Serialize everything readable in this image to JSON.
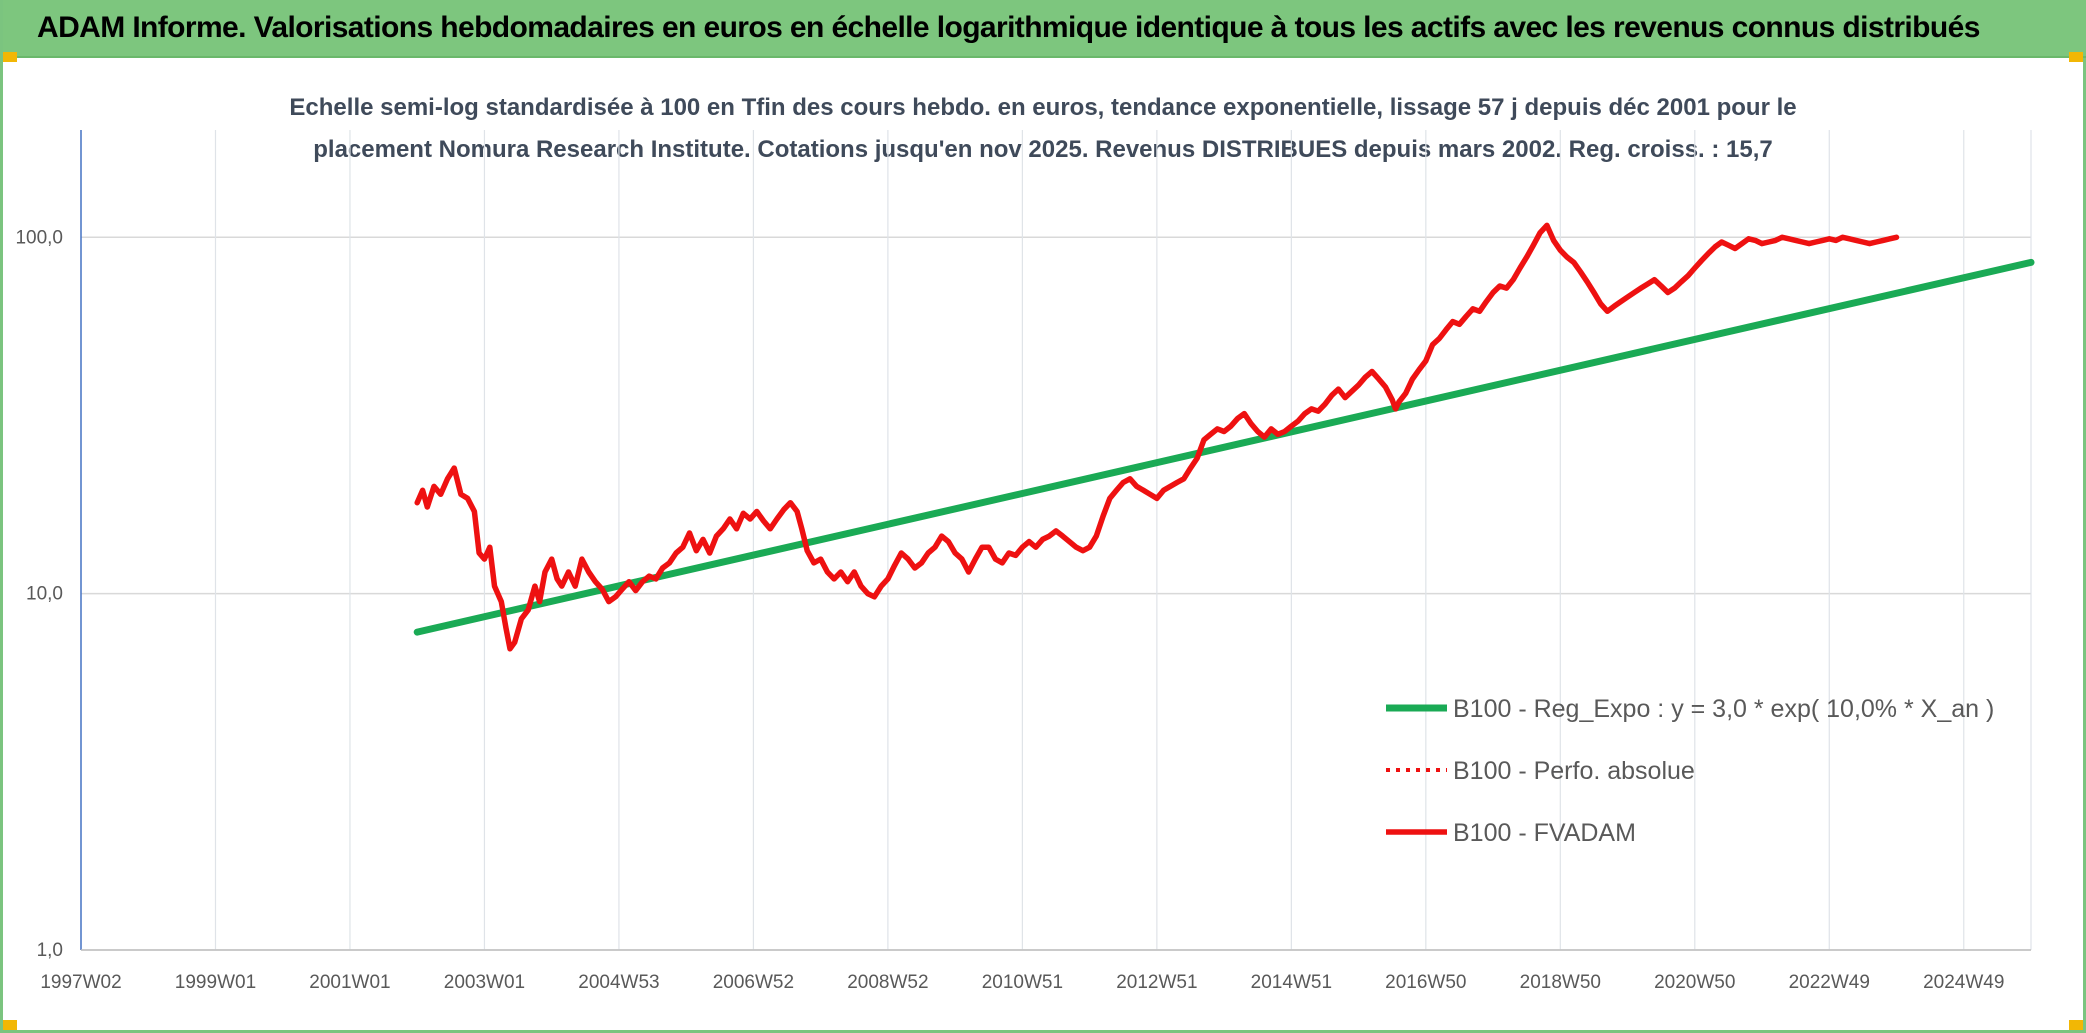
{
  "header": {
    "title": "ADAM Informe. Valorisations hebdomadaires en euros en échelle logarithmique identique à tous les actifs avec les revenus connus distribués",
    "background": "#7dc67e"
  },
  "chart_data": {
    "type": "line",
    "title_lines": [
      "Echelle semi-log standardisée à 100 en Tfin des cours hebdo. en euros, tendance exponentielle, lissage 57 j depuis déc 2001 pour le",
      "placement Nomura Research Institute. Cotations jusqu'en nov 2025. Revenus DISTRIBUES depuis mars 2002. Reg. croiss. : 15,7"
    ],
    "y_scale": "log",
    "ylim": [
      1,
      200
    ],
    "y_ticks": [
      {
        "value": 100,
        "label": "100,0"
      },
      {
        "value": 10,
        "label": "10,0"
      },
      {
        "value": 1,
        "label": "1,0"
      }
    ],
    "xlim": [
      1997.0,
      2026.0
    ],
    "x_ticks": [
      {
        "value": 1997.0,
        "label": "1997W02"
      },
      {
        "value": 1999.0,
        "label": "1999W01"
      },
      {
        "value": 2001.0,
        "label": "2001W01"
      },
      {
        "value": 2003.0,
        "label": "2003W01"
      },
      {
        "value": 2005.0,
        "label": "2004W53"
      },
      {
        "value": 2007.0,
        "label": "2006W52"
      },
      {
        "value": 2009.0,
        "label": "2008W52"
      },
      {
        "value": 2011.0,
        "label": "2010W51"
      },
      {
        "value": 2013.0,
        "label": "2012W51"
      },
      {
        "value": 2015.0,
        "label": "2014W51"
      },
      {
        "value": 2017.0,
        "label": "2016W50"
      },
      {
        "value": 2019.0,
        "label": "2018W50"
      },
      {
        "value": 2021.0,
        "label": "2020W50"
      },
      {
        "value": 2023.0,
        "label": "2022W49"
      },
      {
        "value": 2025.0,
        "label": "2024W49"
      }
    ],
    "grid": true,
    "legend_position": "right",
    "series": [
      {
        "name": "B100 - Reg_Expo : y = 3,0 * exp( 10,0% *  X_an )",
        "color": "#1aaa55",
        "style": "solid",
        "points": [
          [
            2002.0,
            7.8
          ],
          [
            2026.0,
            85
          ]
        ]
      },
      {
        "name": "B100 - Perfo. absolue",
        "color": "#ee1111",
        "style": "dotted",
        "points": []
      },
      {
        "name": "B100 - FVADAM",
        "color": "#ee1111",
        "style": "solid",
        "points": [
          [
            2002.0,
            18
          ],
          [
            2002.08,
            19.5
          ],
          [
            2002.15,
            17.5
          ],
          [
            2002.25,
            20
          ],
          [
            2002.35,
            19
          ],
          [
            2002.45,
            21
          ],
          [
            2002.55,
            22.5
          ],
          [
            2002.65,
            19
          ],
          [
            2002.75,
            18.5
          ],
          [
            2002.85,
            17
          ],
          [
            2002.92,
            13
          ],
          [
            2003.0,
            12.5
          ],
          [
            2003.08,
            13.5
          ],
          [
            2003.15,
            10.5
          ],
          [
            2003.25,
            9.5
          ],
          [
            2003.32,
            8.0
          ],
          [
            2003.38,
            7.0
          ],
          [
            2003.45,
            7.3
          ],
          [
            2003.55,
            8.5
          ],
          [
            2003.65,
            9.0
          ],
          [
            2003.75,
            10.5
          ],
          [
            2003.82,
            9.5
          ],
          [
            2003.9,
            11.5
          ],
          [
            2004.0,
            12.5
          ],
          [
            2004.08,
            11.0
          ],
          [
            2004.15,
            10.5
          ],
          [
            2004.25,
            11.5
          ],
          [
            2004.35,
            10.5
          ],
          [
            2004.45,
            12.5
          ],
          [
            2004.55,
            11.5
          ],
          [
            2004.65,
            10.8
          ],
          [
            2004.75,
            10.3
          ],
          [
            2004.85,
            9.5
          ],
          [
            2004.95,
            9.8
          ],
          [
            2005.05,
            10.3
          ],
          [
            2005.15,
            10.8
          ],
          [
            2005.25,
            10.2
          ],
          [
            2005.35,
            10.8
          ],
          [
            2005.45,
            11.2
          ],
          [
            2005.55,
            11.0
          ],
          [
            2005.65,
            11.8
          ],
          [
            2005.75,
            12.2
          ],
          [
            2005.85,
            13.0
          ],
          [
            2005.95,
            13.5
          ],
          [
            2006.05,
            14.8
          ],
          [
            2006.15,
            13.2
          ],
          [
            2006.25,
            14.2
          ],
          [
            2006.35,
            13.0
          ],
          [
            2006.45,
            14.5
          ],
          [
            2006.55,
            15.2
          ],
          [
            2006.65,
            16.2
          ],
          [
            2006.75,
            15.2
          ],
          [
            2006.85,
            16.8
          ],
          [
            2006.95,
            16.2
          ],
          [
            2007.05,
            17.0
          ],
          [
            2007.15,
            16.0
          ],
          [
            2007.25,
            15.2
          ],
          [
            2007.35,
            16.2
          ],
          [
            2007.45,
            17.2
          ],
          [
            2007.55,
            18.0
          ],
          [
            2007.65,
            17.0
          ],
          [
            2007.72,
            15.2
          ],
          [
            2007.8,
            13.2
          ],
          [
            2007.9,
            12.2
          ],
          [
            2008.0,
            12.5
          ],
          [
            2008.1,
            11.5
          ],
          [
            2008.2,
            11.0
          ],
          [
            2008.3,
            11.5
          ],
          [
            2008.4,
            10.8
          ],
          [
            2008.5,
            11.5
          ],
          [
            2008.6,
            10.5
          ],
          [
            2008.7,
            10.0
          ],
          [
            2008.8,
            9.8
          ],
          [
            2008.9,
            10.5
          ],
          [
            2009.0,
            11.0
          ],
          [
            2009.1,
            12.0
          ],
          [
            2009.2,
            13.0
          ],
          [
            2009.3,
            12.5
          ],
          [
            2009.4,
            11.8
          ],
          [
            2009.5,
            12.2
          ],
          [
            2009.6,
            13.0
          ],
          [
            2009.7,
            13.5
          ],
          [
            2009.8,
            14.5
          ],
          [
            2009.9,
            14.0
          ],
          [
            2010.0,
            13.0
          ],
          [
            2010.1,
            12.5
          ],
          [
            2010.2,
            11.5
          ],
          [
            2010.3,
            12.5
          ],
          [
            2010.4,
            13.5
          ],
          [
            2010.5,
            13.5
          ],
          [
            2010.6,
            12.5
          ],
          [
            2010.7,
            12.2
          ],
          [
            2010.8,
            13.0
          ],
          [
            2010.9,
            12.8
          ],
          [
            2011.0,
            13.5
          ],
          [
            2011.1,
            14.0
          ],
          [
            2011.2,
            13.5
          ],
          [
            2011.3,
            14.2
          ],
          [
            2011.4,
            14.5
          ],
          [
            2011.5,
            15.0
          ],
          [
            2011.6,
            14.5
          ],
          [
            2011.7,
            14.0
          ],
          [
            2011.8,
            13.5
          ],
          [
            2011.9,
            13.2
          ],
          [
            2012.0,
            13.5
          ],
          [
            2012.1,
            14.5
          ],
          [
            2012.2,
            16.5
          ],
          [
            2012.3,
            18.5
          ],
          [
            2012.4,
            19.5
          ],
          [
            2012.5,
            20.5
          ],
          [
            2012.6,
            21.0
          ],
          [
            2012.7,
            20.0
          ],
          [
            2012.8,
            19.5
          ],
          [
            2012.9,
            19.0
          ],
          [
            2013.0,
            18.5
          ],
          [
            2013.1,
            19.5
          ],
          [
            2013.2,
            20.0
          ],
          [
            2013.3,
            20.5
          ],
          [
            2013.4,
            21.0
          ],
          [
            2013.5,
            22.5
          ],
          [
            2013.6,
            24.0
          ],
          [
            2013.7,
            27.0
          ],
          [
            2013.8,
            28.0
          ],
          [
            2013.9,
            29.0
          ],
          [
            2014.0,
            28.5
          ],
          [
            2014.1,
            29.5
          ],
          [
            2014.2,
            31.0
          ],
          [
            2014.3,
            32.0
          ],
          [
            2014.4,
            30.0
          ],
          [
            2014.5,
            28.5
          ],
          [
            2014.6,
            27.5
          ],
          [
            2014.7,
            29.0
          ],
          [
            2014.8,
            28.0
          ],
          [
            2014.9,
            28.5
          ],
          [
            2015.0,
            29.5
          ],
          [
            2015.1,
            30.5
          ],
          [
            2015.2,
            32.0
          ],
          [
            2015.3,
            33.0
          ],
          [
            2015.4,
            32.5
          ],
          [
            2015.5,
            34.0
          ],
          [
            2015.6,
            36.0
          ],
          [
            2015.7,
            37.5
          ],
          [
            2015.8,
            35.5
          ],
          [
            2015.9,
            37.0
          ],
          [
            2016.0,
            38.5
          ],
          [
            2016.1,
            40.5
          ],
          [
            2016.2,
            42.0
          ],
          [
            2016.3,
            40.0
          ],
          [
            2016.4,
            38.0
          ],
          [
            2016.5,
            35.0
          ],
          [
            2016.55,
            33.0
          ],
          [
            2016.6,
            34.5
          ],
          [
            2016.7,
            36.5
          ],
          [
            2016.8,
            40.0
          ],
          [
            2016.9,
            42.5
          ],
          [
            2017.0,
            45.0
          ],
          [
            2017.1,
            50.0
          ],
          [
            2017.2,
            52.0
          ],
          [
            2017.3,
            55.0
          ],
          [
            2017.4,
            58.0
          ],
          [
            2017.5,
            57.0
          ],
          [
            2017.6,
            60.0
          ],
          [
            2017.7,
            63.0
          ],
          [
            2017.8,
            62.0
          ],
          [
            2017.9,
            66.0
          ],
          [
            2018.0,
            70.0
          ],
          [
            2018.1,
            73.0
          ],
          [
            2018.2,
            72.0
          ],
          [
            2018.3,
            76.0
          ],
          [
            2018.4,
            82.0
          ],
          [
            2018.5,
            88.0
          ],
          [
            2018.6,
            95.0
          ],
          [
            2018.7,
            103.0
          ],
          [
            2018.8,
            108.0
          ],
          [
            2018.9,
            98.0
          ],
          [
            2019.0,
            92.0
          ],
          [
            2019.1,
            88.0
          ],
          [
            2019.2,
            85.0
          ],
          [
            2019.3,
            80.0
          ],
          [
            2019.4,
            75.0
          ],
          [
            2019.5,
            70.0
          ],
          [
            2019.6,
            65.0
          ],
          [
            2019.7,
            62.0
          ],
          [
            2019.8,
            64.0
          ],
          [
            2019.9,
            66.0
          ],
          [
            2020.0,
            68.0
          ],
          [
            2020.1,
            70.0
          ],
          [
            2020.2,
            72.0
          ],
          [
            2020.3,
            74.0
          ],
          [
            2020.4,
            76.0
          ],
          [
            2020.5,
            73.0
          ],
          [
            2020.6,
            70.0
          ],
          [
            2020.7,
            72.0
          ],
          [
            2020.8,
            75.0
          ],
          [
            2020.9,
            78.0
          ],
          [
            2021.0,
            82.0
          ],
          [
            2021.1,
            86.0
          ],
          [
            2021.2,
            90.0
          ],
          [
            2021.3,
            94.0
          ],
          [
            2021.4,
            97.0
          ],
          [
            2021.5,
            95.0
          ],
          [
            2021.6,
            93.0
          ],
          [
            2021.7,
            96.0
          ],
          [
            2021.8,
            99.0
          ],
          [
            2021.9,
            98.0
          ],
          [
            2022.0,
            96.0
          ],
          [
            2022.1,
            97.0
          ],
          [
            2022.2,
            98.0
          ],
          [
            2022.3,
            100.0
          ],
          [
            2022.4,
            99.0
          ],
          [
            2022.5,
            98.0
          ],
          [
            2022.6,
            97.0
          ],
          [
            2022.7,
            96.0
          ],
          [
            2022.8,
            97.0
          ],
          [
            2022.9,
            98.0
          ],
          [
            2023.0,
            99.0
          ],
          [
            2023.1,
            98.0
          ],
          [
            2023.2,
            100.0
          ],
          [
            2023.3,
            99.0
          ],
          [
            2023.4,
            98.0
          ],
          [
            2023.5,
            97.0
          ],
          [
            2023.6,
            96.0
          ],
          [
            2023.7,
            97.0
          ],
          [
            2023.8,
            98.0
          ],
          [
            2023.9,
            99.0
          ],
          [
            2024.0,
            100.0
          ]
        ]
      }
    ]
  }
}
